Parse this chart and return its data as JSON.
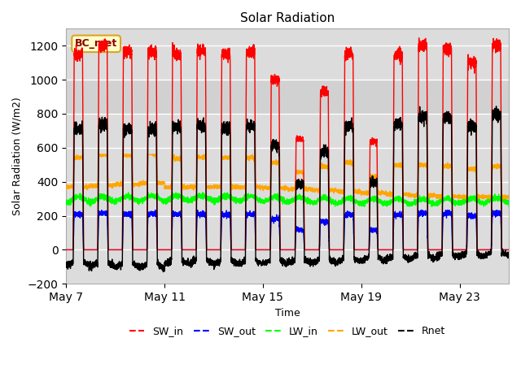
{
  "title": "Solar Radiation",
  "ylabel": "Solar Radiation (W/m2)",
  "xlabel": "Time",
  "ylim": [
    -200,
    1300
  ],
  "yticks": [
    -200,
    0,
    200,
    400,
    600,
    800,
    1000,
    1200
  ],
  "xtick_labels": [
    "May 7",
    "May 11",
    "May 15",
    "May 19",
    "May 23"
  ],
  "xtick_positions": [
    0,
    4,
    8,
    12,
    16
  ],
  "annotation_text": "BC_met",
  "days": 18,
  "n_per_day": 288,
  "sw_in_peaks": [
    1150,
    1200,
    1170,
    1160,
    1150,
    1170,
    1150,
    1160,
    1000,
    650,
    930,
    1150,
    640,
    1140,
    1200,
    1180,
    1100,
    1200
  ],
  "sw_in_widths": [
    0.42,
    0.42,
    0.42,
    0.42,
    0.42,
    0.42,
    0.42,
    0.42,
    0.4,
    0.38,
    0.4,
    0.42,
    0.36,
    0.42,
    0.42,
    0.42,
    0.42,
    0.42
  ],
  "night_rnet": -100,
  "lw_in_mean": 300,
  "lw_out_mean": 370
}
